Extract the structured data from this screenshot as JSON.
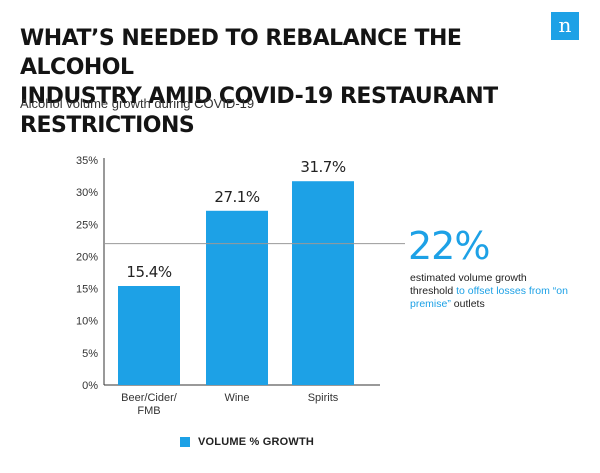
{
  "brand": {
    "logo_letter": "n",
    "color": "#1da1e6"
  },
  "header": {
    "title_line1": "WHAT’S NEEDED TO REBALANCE THE ALCOHOL",
    "title_line2": "INDUSTRY AMID COVID-19 RESTAURANT RESTRICTIONS",
    "subtitle": "Alcohol volume growth during COVID-19"
  },
  "chart_data": {
    "type": "bar",
    "categories": [
      "Beer/Cider/FMB",
      "Wine",
      "Spirits"
    ],
    "category_lines": [
      [
        "Beer/Cider/",
        "FMB"
      ],
      [
        "Wine"
      ],
      [
        "Spirits"
      ]
    ],
    "series": [
      {
        "name": "VOLUME % GROWTH",
        "values": [
          15.4,
          27.1,
          31.7
        ],
        "color": "#1da1e6"
      }
    ],
    "data_labels": [
      "15.4%",
      "27.1%",
      "31.7%"
    ],
    "ylim": [
      0,
      35
    ],
    "yticks": [
      0,
      5,
      10,
      15,
      20,
      25,
      30,
      35
    ],
    "ytick_labels": [
      "0%",
      "5%",
      "10%",
      "15%",
      "20%",
      "25%",
      "30%",
      "35%"
    ],
    "reference_line": {
      "value": 22,
      "color": "#999999"
    },
    "grid": false,
    "legend_position": "bottom-left"
  },
  "annotation": {
    "value": "22%",
    "text_before": "estimated volume growth threshold ",
    "text_highlight": "to offset losses from “on premise”",
    "text_after": " outlets"
  },
  "legend": {
    "label": "VOLUME % GROWTH"
  }
}
